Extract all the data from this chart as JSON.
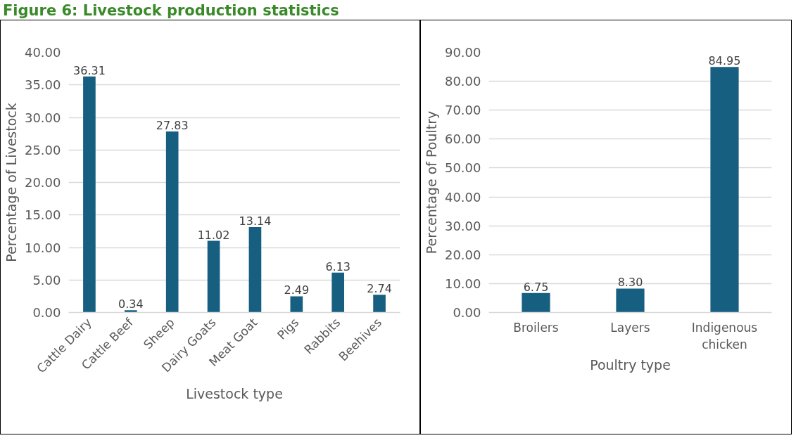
{
  "chart_data": [
    {
      "type": "bar",
      "title": "Figure 6: Livestock production statistics",
      "xlabel": "Livestock type",
      "ylabel": "Percentage of Livestock",
      "categories": [
        "Cattle Dairy",
        "Cattle Beef",
        "Sheep",
        "Dairy Goats",
        "Meat Goat",
        "Pigs",
        "Rabbits",
        "Beehives"
      ],
      "values": [
        36.31,
        0.34,
        27.83,
        11.02,
        13.14,
        2.49,
        6.13,
        2.74
      ],
      "value_labels": [
        "36.31",
        "0.34",
        "27.83",
        "11.02",
        "13.14",
        "2.49",
        "6.13",
        "2.74"
      ],
      "color": "#175f81",
      "ylim": [
        0,
        40
      ],
      "yticks": [
        {
          "value": 0,
          "label": "0.00"
        },
        {
          "value": 5,
          "label": "5.00"
        },
        {
          "value": 10,
          "label": "10.00"
        },
        {
          "value": 15,
          "label": "15.00"
        },
        {
          "value": 20,
          "label": "20.00"
        },
        {
          "value": 25,
          "label": "25.00"
        },
        {
          "value": 30,
          "label": "30.00"
        },
        {
          "value": 35,
          "label": "35.00"
        },
        {
          "value": 40,
          "label": "40.00"
        }
      ],
      "grid": "y"
    },
    {
      "type": "bar",
      "xlabel": "Poultry type",
      "ylabel": "Percentage of Poultry",
      "categories": [
        "Broilers",
        "Layers",
        "Indigenous chicken"
      ],
      "values": [
        6.75,
        8.3,
        84.95
      ],
      "value_labels": [
        "6.75",
        "8.30",
        "84.95"
      ],
      "color": "#175f81",
      "ylim": [
        0,
        90
      ],
      "yticks": [
        {
          "value": 0,
          "label": "0.00"
        },
        {
          "value": 10,
          "label": "10.00"
        },
        {
          "value": 20,
          "label": "20.00"
        },
        {
          "value": 30,
          "label": "30.00"
        },
        {
          "value": 40,
          "label": "40.00"
        },
        {
          "value": 50,
          "label": "50.00"
        },
        {
          "value": 60,
          "label": "60.00"
        },
        {
          "value": 70,
          "label": "70.00"
        },
        {
          "value": 80,
          "label": "80.00"
        },
        {
          "value": 90,
          "label": "90.00"
        }
      ],
      "grid": "y"
    }
  ]
}
